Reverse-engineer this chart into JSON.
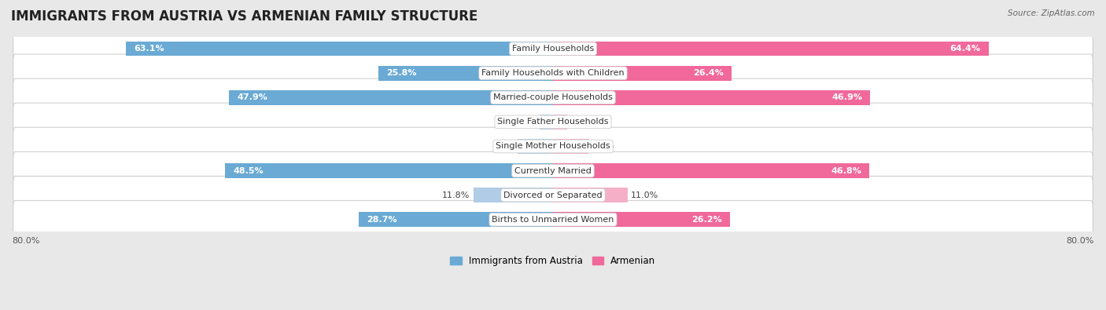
{
  "title": "IMMIGRANTS FROM AUSTRIA VS ARMENIAN FAMILY STRUCTURE",
  "source": "Source: ZipAtlas.com",
  "categories": [
    "Family Households",
    "Family Households with Children",
    "Married-couple Households",
    "Single Father Households",
    "Single Mother Households",
    "Currently Married",
    "Divorced or Separated",
    "Births to Unmarried Women"
  ],
  "austria_values": [
    63.1,
    25.8,
    47.9,
    2.0,
    5.2,
    48.5,
    11.8,
    28.7
  ],
  "armenian_values": [
    64.4,
    26.4,
    46.9,
    2.1,
    5.2,
    46.8,
    11.0,
    26.2
  ],
  "austria_color_dark": "#6aaad4",
  "armenian_color_dark": "#f0699a",
  "austria_color_light": "#b0cce6",
  "armenian_color_light": "#f5b0c8",
  "axis_max": 80.0,
  "axis_label_left": "80.0%",
  "axis_label_right": "80.0%",
  "legend_austria": "Immigrants from Austria",
  "legend_armenian": "Armenian",
  "background_color": "#e8e8e8",
  "row_bg_color": "#ffffff",
  "title_fontsize": 12,
  "label_fontsize": 8,
  "value_fontsize": 8,
  "large_threshold": 15.0
}
